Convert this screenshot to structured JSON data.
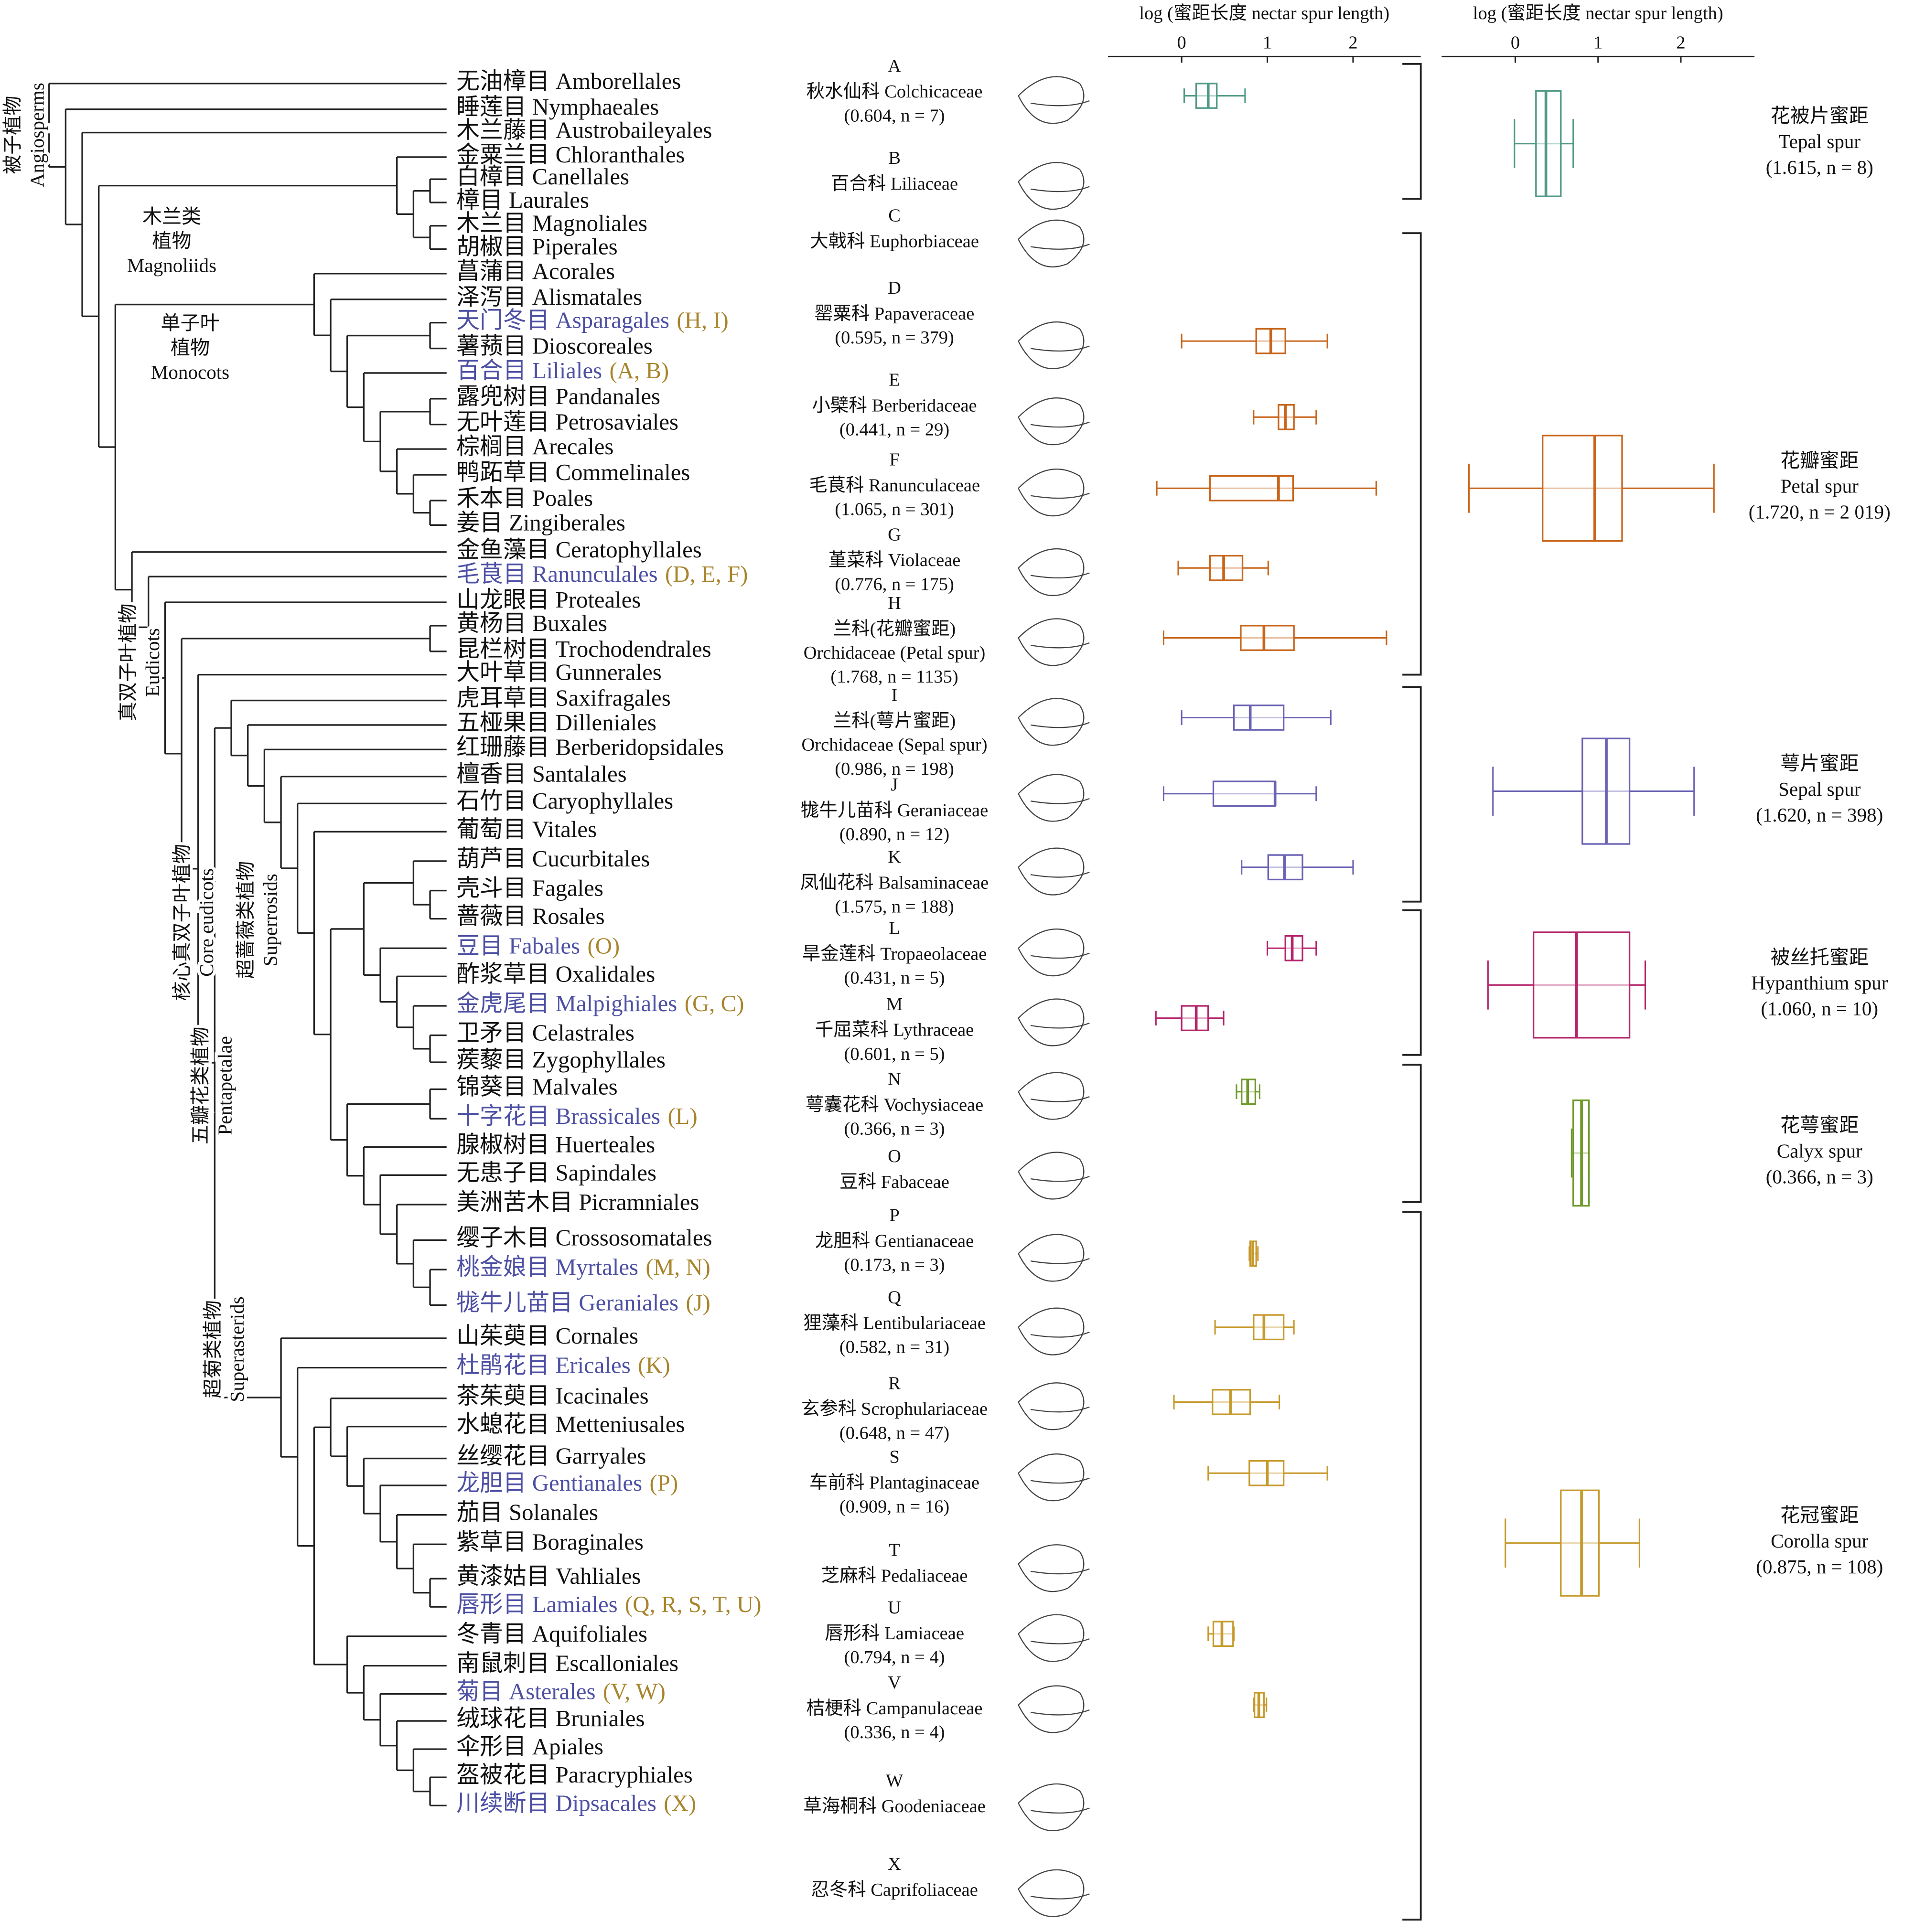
{
  "clades": [
    {
      "lines": [
        "被子植物",
        "Angiosperms"
      ],
      "rotate": true
    },
    {
      "lines": [
        "木兰类",
        "植物",
        "Magnoliids"
      ],
      "rotate": false
    },
    {
      "lines": [
        "单子叶",
        "植物",
        "Monocots"
      ],
      "rotate": false
    },
    {
      "lines": [
        "真双子叶植物",
        "Eudicots"
      ],
      "rotate": true
    },
    {
      "lines": [
        "核心真双子叶植物",
        "Core eudicots"
      ],
      "rotate": true
    },
    {
      "lines": [
        "超蔷薇类植物",
        "Superrosids"
      ],
      "rotate": true
    },
    {
      "lines": [
        "五瓣花类植物",
        "Pentapetalae"
      ],
      "rotate": true
    },
    {
      "lines": [
        "超菊类植物",
        "Superasterids"
      ],
      "rotate": true
    }
  ],
  "refs_color": "#a8852c",
  "orders": [
    {
      "name": "无油樟目 Amborellales"
    },
    {
      "name": "睡莲目 Nymphaeales"
    },
    {
      "name": "木兰藤目 Austrobaileyales"
    },
    {
      "name": "金粟兰目 Chloranthales"
    },
    {
      "name": "白樟目 Canellales"
    },
    {
      "name": "樟目 Laurales"
    },
    {
      "name": "木兰目 Magnoliales"
    },
    {
      "name": "胡椒目 Piperales"
    },
    {
      "name": "菖蒲目 Acorales"
    },
    {
      "name": "泽泻目 Alismatales"
    },
    {
      "name": "天门冬目 Asparagales",
      "color": "#4d50a3",
      "refs": "(H, I)"
    },
    {
      "name": "薯蓣目 Dioscoreales"
    },
    {
      "name": "百合目 Liliales",
      "color": "#4d50a3",
      "refs": "(A, B)"
    },
    {
      "name": "露兜树目 Pandanales"
    },
    {
      "name": "无叶莲目 Petrosaviales"
    },
    {
      "name": "棕榈目 Arecales"
    },
    {
      "name": "鸭跖草目 Commelinales"
    },
    {
      "name": "禾本目 Poales"
    },
    {
      "name": "姜目 Zingiberales"
    },
    {
      "name": "金鱼藻目 Ceratophyllales"
    },
    {
      "name": "毛茛目 Ranunculales",
      "color": "#4d50a3",
      "refs": "(D, E, F)"
    },
    {
      "name": "山龙眼目 Proteales"
    },
    {
      "name": "黄杨目 Buxales"
    },
    {
      "name": "昆栏树目 Trochodendrales"
    },
    {
      "name": "大叶草目 Gunnerales"
    },
    {
      "name": "虎耳草目 Saxifragales"
    },
    {
      "name": "五桠果目 Dilleniales"
    },
    {
      "name": "红珊藤目 Berberidopsidales"
    },
    {
      "name": "檀香目 Santalales"
    },
    {
      "name": "石竹目 Caryophyllales"
    },
    {
      "name": "葡萄目 Vitales"
    },
    {
      "name": "葫芦目 Cucurbitales"
    },
    {
      "name": "壳斗目 Fagales"
    },
    {
      "name": "蔷薇目 Rosales"
    },
    {
      "name": "豆目 Fabales",
      "color": "#4d50a3",
      "refs": "(O)"
    },
    {
      "name": "酢浆草目 Oxalidales"
    },
    {
      "name": "金虎尾目 Malpighiales",
      "color": "#4d50a3",
      "refs": "(G, C)"
    },
    {
      "name": "卫矛目 Celastrales"
    },
    {
      "name": "蒺藜目 Zygophyllales"
    },
    {
      "name": "锦葵目 Malvales"
    },
    {
      "name": "十字花目 Brassicales",
      "color": "#4d50a3",
      "refs": "(L)"
    },
    {
      "name": "腺椒树目 Huerteales"
    },
    {
      "name": "无患子目 Sapindales"
    },
    {
      "name": "美洲苦木目 Picramniales"
    },
    {
      "name": "缨子木目 Crossosomatales"
    },
    {
      "name": "桃金娘目 Myrtales",
      "color": "#4d50a3",
      "refs": "(M, N)"
    },
    {
      "name": "牻牛儿苗目 Geraniales",
      "color": "#4d50a3",
      "refs": "(J)"
    },
    {
      "name": "山茱萸目 Cornales"
    },
    {
      "name": "杜鹃花目 Ericales",
      "color": "#4d50a3",
      "refs": "(K)"
    },
    {
      "name": "茶茱萸目 Icacinales"
    },
    {
      "name": "水螅花目 Metteniusales"
    },
    {
      "name": "丝缨花目 Garryales"
    },
    {
      "name": "龙胆目 Gentianales",
      "color": "#4d50a3",
      "refs": "(P)"
    },
    {
      "name": "茄目 Solanales"
    },
    {
      "name": "紫草目 Boraginales"
    },
    {
      "name": "黄漆姑目 Vahliales"
    },
    {
      "name": "唇形目 Lamiales",
      "color": "#4d50a3",
      "refs": "(Q, R, S, T, U)"
    },
    {
      "name": "冬青目 Aquifoliales"
    },
    {
      "name": "南鼠刺目 Escalloniales"
    },
    {
      "name": "菊目 Asterales",
      "color": "#4d50a3",
      "refs": "(V, W)"
    },
    {
      "name": "绒球花目 Bruniales"
    },
    {
      "name": "伞形目 Apiales"
    },
    {
      "name": "盔被花目 Paracryphiales"
    },
    {
      "name": "川续断目 Dipsacales",
      "color": "#4d50a3",
      "refs": "(X)"
    }
  ],
  "families": [
    {
      "letter": "A",
      "lines": [
        "秋水仙科 Colchicaceae",
        "(0.604, n = 7)"
      ]
    },
    {
      "letter": "B",
      "lines": [
        "百合科 Liliaceae"
      ]
    },
    {
      "letter": "C",
      "lines": [
        "大戟科 Euphorbiaceae"
      ]
    },
    {
      "letter": "D",
      "lines": [
        "罂粟科 Papaveraceae",
        "(0.595, n = 379)"
      ]
    },
    {
      "letter": "E",
      "lines": [
        "小檗科 Berberidaceae",
        "(0.441, n = 29)"
      ]
    },
    {
      "letter": "F",
      "lines": [
        "毛茛科 Ranunculaceae",
        "(1.065, n = 301)"
      ]
    },
    {
      "letter": "G",
      "lines": [
        "堇菜科 Violaceae",
        "(0.776, n = 175)"
      ]
    },
    {
      "letter": "H",
      "lines": [
        "兰科(花瓣蜜距)",
        "Orchidaceae (Petal spur)",
        "(1.768, n = 1135)"
      ]
    },
    {
      "letter": "I",
      "lines": [
        "兰科(萼片蜜距)",
        "Orchidaceae (Sepal spur)",
        "(0.986, n = 198)"
      ]
    },
    {
      "letter": "J",
      "lines": [
        "牻牛儿苗科 Geraniaceae",
        "(0.890, n = 12)"
      ]
    },
    {
      "letter": "K",
      "lines": [
        "凤仙花科 Balsaminaceae",
        "(1.575, n = 188)"
      ]
    },
    {
      "letter": "L",
      "lines": [
        "旱金莲科 Tropaeolaceae",
        "(0.431, n = 5)"
      ]
    },
    {
      "letter": "M",
      "lines": [
        "千屈菜科 Lythraceae",
        "(0.601, n = 5)"
      ]
    },
    {
      "letter": "N",
      "lines": [
        "萼囊花科 Vochysiaceae",
        "(0.366, n = 3)"
      ]
    },
    {
      "letter": "O",
      "lines": [
        "豆科 Fabaceae"
      ]
    },
    {
      "letter": "P",
      "lines": [
        "龙胆科 Gentianaceae",
        "(0.173, n = 3)"
      ]
    },
    {
      "letter": "Q",
      "lines": [
        "狸藻科 Lentibulariaceae",
        "(0.582, n = 31)"
      ]
    },
    {
      "letter": "R",
      "lines": [
        "玄参科 Scrophulariaceae",
        "(0.648, n = 47)"
      ]
    },
    {
      "letter": "S",
      "lines": [
        "车前科 Plantaginaceae",
        "(0.909, n = 16)"
      ]
    },
    {
      "letter": "T",
      "lines": [
        "芝麻科 Pedaliaceae"
      ]
    },
    {
      "letter": "U",
      "lines": [
        "唇形科 Lamiaceae",
        "(0.794, n = 4)"
      ]
    },
    {
      "letter": "V",
      "lines": [
        "桔梗科 Campanulaceae",
        "(0.336, n = 4)"
      ]
    },
    {
      "letter": "W",
      "lines": [
        "草海桐科 Goodeniaceae"
      ]
    },
    {
      "letter": "X",
      "lines": [
        "忍冬科 Caprifoliaceae"
      ]
    }
  ],
  "chart_data": [
    {
      "type": "box",
      "title": "log (蜜距长度 nectar spur length)",
      "xlim": [
        -0.86,
        2.79
      ],
      "xticks": [
        0,
        1,
        2
      ],
      "boxes": [
        {
          "min": 0.03,
          "q1": 0.17,
          "median": 0.31,
          "q3": 0.41,
          "max": 0.74,
          "color": "#4f9a86"
        },
        null,
        null,
        {
          "min": 0,
          "q1": 0.87,
          "median": 1.04,
          "q3": 1.21,
          "max": 1.7,
          "color": "#c8651b"
        },
        {
          "min": 0.84,
          "q1": 1.13,
          "median": 1.21,
          "q3": 1.31,
          "max": 1.57,
          "color": "#c8651b"
        },
        {
          "min": -0.29,
          "q1": 0.33,
          "median": 1.13,
          "q3": 1.3,
          "max": 2.27,
          "color": "#c8651b"
        },
        {
          "min": -0.04,
          "q1": 0.33,
          "median": 0.49,
          "q3": 0.71,
          "max": 1.01,
          "color": "#c8651b"
        },
        {
          "min": -0.21,
          "q1": 0.69,
          "median": 0.96,
          "q3": 1.31,
          "max": 2.39,
          "color": "#c8651b"
        },
        {
          "min": 0,
          "q1": 0.61,
          "median": 0.8,
          "q3": 1.19,
          "max": 1.74,
          "color": "#6a62b3"
        },
        {
          "min": -0.21,
          "q1": 0.37,
          "median": 1.09,
          "q3": 1.09,
          "max": 1.57,
          "color": "#6a62b3"
        },
        {
          "min": 0.7,
          "q1": 1.01,
          "median": 1.2,
          "q3": 1.41,
          "max": 2,
          "color": "#6a62b3"
        },
        {
          "min": 1.0,
          "q1": 1.21,
          "median": 1.29,
          "q3": 1.41,
          "max": 1.57,
          "color": "#b5246b"
        },
        {
          "min": -0.3,
          "q1": 0,
          "median": 0.17,
          "q3": 0.31,
          "max": 0.49,
          "color": "#b5246b"
        },
        {
          "min": 0.64,
          "q1": 0.7,
          "median": 0.77,
          "q3": 0.86,
          "max": 0.91,
          "color": "#6f9a2b"
        },
        null,
        {
          "min": 0.79,
          "q1": 0.8,
          "median": 0.83,
          "q3": 0.87,
          "max": 0.89,
          "color": "#c79a2c"
        },
        {
          "min": 0.39,
          "q1": 0.84,
          "median": 0.96,
          "q3": 1.19,
          "max": 1.31,
          "color": "#c79a2c"
        },
        {
          "min": -0.09,
          "q1": 0.36,
          "median": 0.57,
          "q3": 0.8,
          "max": 1.14,
          "color": "#c79a2c"
        },
        {
          "min": 0.31,
          "q1": 0.79,
          "median": 1.0,
          "q3": 1.19,
          "max": 1.7,
          "color": "#c79a2c"
        },
        null,
        {
          "min": 0.31,
          "q1": 0.37,
          "median": 0.47,
          "q3": 0.6,
          "max": 0.61,
          "color": "#c79a2c"
        },
        {
          "min": 0.84,
          "q1": 0.85,
          "median": 0.9,
          "q3": 0.96,
          "max": 0.99,
          "color": "#c79a2c"
        },
        null,
        null
      ]
    },
    {
      "type": "box",
      "title": "log (蜜距长度 nectar spur length)",
      "xlim": [
        -0.89,
        2.89
      ],
      "xticks": [
        0,
        1,
        2
      ],
      "boxes": [
        {
          "label": [
            "花被片蜜距",
            "Tepal spur",
            "(1.615, n = 8)"
          ],
          "min": -0.01,
          "q1": 0.25,
          "median": 0.37,
          "q3": 0.55,
          "max": 0.7,
          "color": "#4f9a86"
        },
        {
          "label": [
            "花瓣蜜距",
            "Petal spur",
            "(1.720, n = 2 019)"
          ],
          "min": -0.56,
          "q1": 0.33,
          "median": 0.96,
          "q3": 1.29,
          "max": 2.4,
          "color": "#c8651b"
        },
        {
          "label": [
            "萼片蜜距",
            "Sepal spur",
            "(1.620, n = 398)"
          ],
          "min": -0.27,
          "q1": 0.81,
          "median": 1.1,
          "q3": 1.38,
          "max": 2.16,
          "color": "#6a62b3"
        },
        {
          "label": [
            "被丝托蜜距",
            "Hypanthium spur",
            "(1.060, n = 10)"
          ],
          "min": -0.33,
          "q1": 0.22,
          "median": 0.74,
          "q3": 1.38,
          "max": 1.57,
          "color": "#b5246b"
        },
        {
          "label": [
            "花萼蜜距",
            "Calyx spur",
            "(0.366, n = 3)"
          ],
          "min": 0.68,
          "q1": 0.7,
          "median": 0.8,
          "q3": 0.89,
          "max": 0.89,
          "color": "#6f9a2b"
        },
        {
          "label": [
            "花冠蜜距",
            "Corolla spur",
            "(0.875, n = 108)"
          ],
          "min": -0.12,
          "q1": 0.55,
          "median": 0.8,
          "q3": 1.01,
          "max": 1.5,
          "color": "#c79a2c"
        }
      ]
    }
  ]
}
